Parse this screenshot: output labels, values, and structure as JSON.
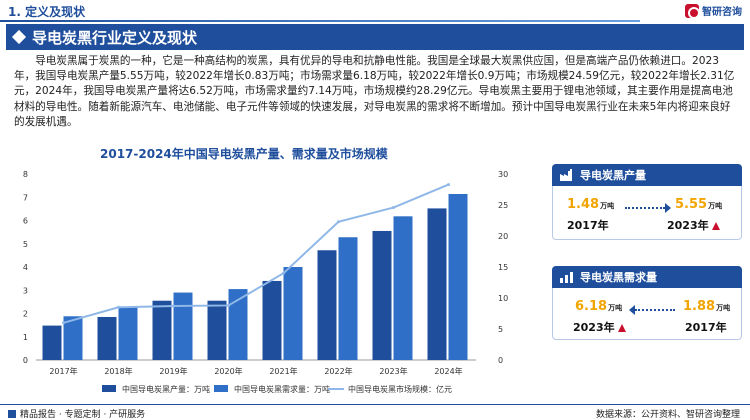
{
  "header": {
    "section": "1. 定义及现状",
    "logo_text": "智研咨询"
  },
  "title": "导电炭黑行业定义及现状",
  "paragraph": "导电炭黑属于炭黑的一种，它是一种高结构的炭黑，具有优异的导电和抗静电性能。我国是全球最大炭黑供应国，但是高端产品仍依赖进口。2023年，我国导电炭黑产量5.55万吨，较2022年增长0.83万吨；市场需求量6.18万吨，较2022年增长0.9万吨；市场规模24.59亿元，较2022年增长2.31亿元，2024年，我国导电炭黑产量将达6.52万吨，市场需求量约7.14万吨，市场规模约28.29亿元。导电炭黑主要用于锂电池领域，其主要作用是提高电池材料的导电性。随着新能源汽车、电池储能、电子元件等领域的快速发展，对导电炭黑的需求将不断增加。预计中国导电炭黑行业在未来5年内将迎来良好的发展机遇。",
  "chart_title": "2017-2024年中国导电炭黑产量、需求量及市场规模",
  "chart_data": {
    "type": "bar",
    "categories": [
      "2017年",
      "2018年",
      "2019年",
      "2020年",
      "2021年",
      "2022年",
      "2023年",
      "2024年"
    ],
    "series": [
      {
        "name": "中国导电炭黑产量：万吨",
        "type": "bar",
        "axis": "left",
        "values": [
          1.48,
          1.85,
          2.55,
          2.55,
          3.4,
          4.72,
          5.55,
          6.52
        ]
      },
      {
        "name": "中国导电炭黑需求量：万吨",
        "type": "bar",
        "axis": "left",
        "values": [
          1.88,
          2.3,
          2.9,
          3.05,
          4.0,
          5.28,
          6.18,
          7.14
        ]
      },
      {
        "name": "中国导电炭黑市场规模：亿元",
        "type": "line",
        "axis": "right",
        "values": [
          6.0,
          8.5,
          8.7,
          8.8,
          14.0,
          22.3,
          24.59,
          28.29
        ]
      }
    ],
    "left_ticks": [
      "0",
      "1",
      "2",
      "3",
      "4",
      "5",
      "6",
      "7",
      "8"
    ],
    "right_ticks": [
      "0",
      "5",
      "10",
      "15",
      "20",
      "25",
      "30"
    ],
    "ylim": [
      0,
      8
    ],
    "y2lim": [
      0,
      30
    ],
    "grid": false,
    "legend_position": "bottom",
    "colors": {
      "production": "#1f4e9c",
      "demand": "#2f6fc7",
      "market": "#8fb8e8"
    }
  },
  "card1": {
    "title": "导电炭黑产量",
    "from_value": "1.48",
    "from_unit": "万吨",
    "from_year": "2017年",
    "to_value": "5.55",
    "to_unit": "万吨",
    "to_year": "2023年"
  },
  "card2": {
    "title": "导电炭黑需求量",
    "left_value": "6.18",
    "left_unit": "万吨",
    "left_year": "2023年",
    "right_value": "1.88",
    "right_unit": "万吨",
    "right_year": "2017年"
  },
  "footer": {
    "left": "精品报告 · 专题定制 · 产研服务",
    "right": "数据来源：公开资料、智研咨询整理"
  },
  "colors": {
    "brand_blue": "#1f4e9c",
    "accent_orange": "#f2a400",
    "up_red": "#c8102e"
  }
}
